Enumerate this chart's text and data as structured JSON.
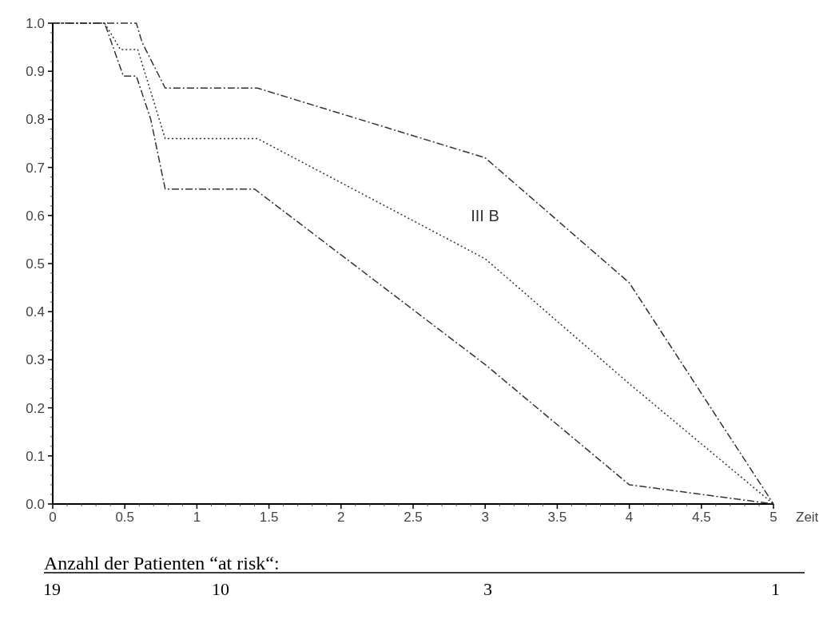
{
  "chart_data": {
    "type": "line",
    "xlabel": "Zeit",
    "xlim": [
      0,
      5
    ],
    "ylim": [
      0,
      1
    ],
    "xticks": [
      0,
      0.5,
      1,
      1.5,
      2,
      2.5,
      3,
      3.5,
      4,
      4.5,
      5
    ],
    "yticks": [
      {
        "value": 0,
        "label": "0.0"
      },
      {
        "value": 0.1,
        "label": "0.1"
      },
      {
        "value": 0.2,
        "label": "0.2"
      },
      {
        "value": 0.3,
        "label": "0.3"
      },
      {
        "value": 0.4,
        "label": "0.4"
      },
      {
        "value": 0.5,
        "label": "0.5"
      },
      {
        "value": 0.6,
        "label": "0.6"
      },
      {
        "value": 0.7,
        "label": "0.7"
      },
      {
        "value": 0.8,
        "label": "0.8"
      },
      {
        "value": 0.9,
        "label": "0.9"
      },
      {
        "value": 1,
        "label": "1.0"
      }
    ],
    "series": [
      {
        "color": "#333333",
        "line_style": "dashed",
        "x": [
          0,
          0.58,
          0.62,
          0.78,
          1.42,
          3,
          4,
          5
        ],
        "values": [
          1,
          1,
          0.96,
          0.865,
          0.865,
          0.72,
          0.46,
          0
        ]
      },
      {
        "color": "#333333",
        "line_style": "dotted",
        "x": [
          0,
          0.36,
          0.47,
          0.59,
          0.78,
          1.42,
          3,
          4,
          5
        ],
        "values": [
          1,
          1,
          0.945,
          0.945,
          0.76,
          0.76,
          0.51,
          0.25,
          0
        ]
      },
      {
        "color": "#333333",
        "line_style": "dashed",
        "x": [
          0,
          0.36,
          0.49,
          0.58,
          0.68,
          0.78,
          1.4,
          3,
          4,
          5
        ],
        "values": [
          1,
          1,
          0.89,
          0.89,
          0.8,
          0.655,
          0.655,
          0.29,
          0.04,
          0
        ]
      }
    ],
    "annotations": [
      "III B",
      "Anzahl der Patienten “at risk“:",
      "19",
      "10",
      "3",
      "1"
    ]
  }
}
